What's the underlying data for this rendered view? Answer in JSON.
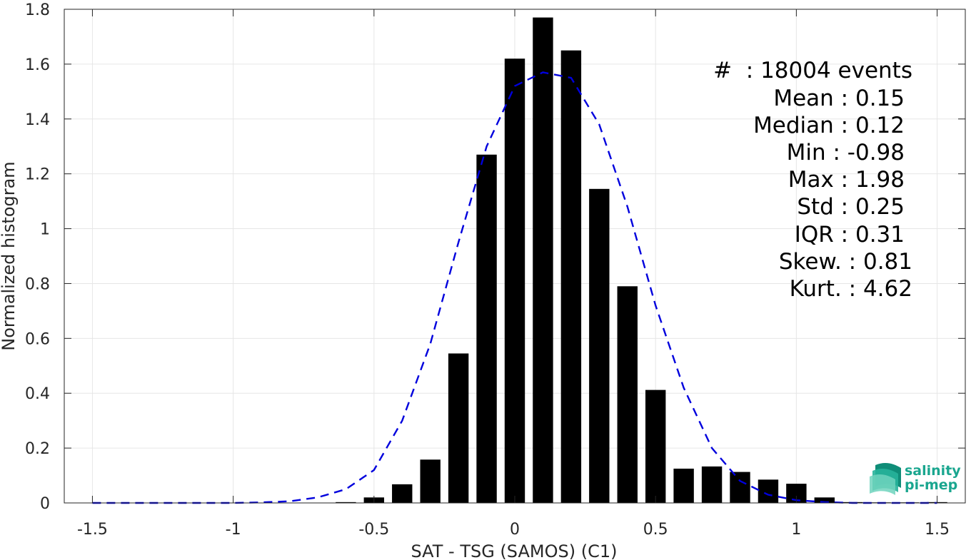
{
  "chart_data": {
    "type": "bar",
    "xlabel": "SAT - TSG (SAMOS) (C1)",
    "ylabel": "Normalized histogram",
    "xlim": [
      -1.6,
      1.6
    ],
    "ylim": [
      0,
      1.8
    ],
    "xticks": [
      -1.5,
      -1,
      -0.5,
      0,
      0.5,
      1,
      1.5
    ],
    "xtick_labels": [
      "-1.5",
      "-1",
      "-0.5",
      "0",
      "0.5",
      "1",
      "1.5"
    ],
    "yticks": [
      0,
      0.2,
      0.4,
      0.6,
      0.8,
      1,
      1.2,
      1.4,
      1.6,
      1.8
    ],
    "ytick_labels": [
      "0",
      "0.2",
      "0.4",
      "0.6",
      "0.8",
      "1",
      "1.2",
      "1.4",
      "1.6",
      "1.8"
    ],
    "grid": true,
    "bar_color": "#000000",
    "fit_color": "#0000dd",
    "bins": {
      "x": [
        -0.6,
        -0.5,
        -0.4,
        -0.3,
        -0.2,
        -0.1,
        0.0,
        0.1,
        0.2,
        0.3,
        0.4,
        0.5,
        0.6,
        0.7,
        0.8,
        0.9,
        1.0,
        1.1,
        1.2,
        1.3,
        1.4,
        1.5
      ],
      "values": [
        0.003,
        0.02,
        0.068,
        0.158,
        0.545,
        1.27,
        1.62,
        1.77,
        1.65,
        1.145,
        0.79,
        0.412,
        0.125,
        0.133,
        0.113,
        0.085,
        0.07,
        0.02,
        0.003,
        0.002,
        0.002,
        0.003
      ]
    },
    "fit": {
      "x": [
        -1.5,
        -1.4,
        -1.3,
        -1.2,
        -1.1,
        -1.0,
        -0.9,
        -0.8,
        -0.7,
        -0.6,
        -0.5,
        -0.4,
        -0.3,
        -0.2,
        -0.1,
        0.0,
        0.1,
        0.2,
        0.3,
        0.4,
        0.5,
        0.6,
        0.7,
        0.8,
        0.9,
        1.0,
        1.1,
        1.2,
        1.3,
        1.4,
        1.5
      ],
      "y": [
        0.0,
        0.0,
        0.0,
        0.0,
        0.0,
        0.0,
        0.002,
        0.006,
        0.02,
        0.05,
        0.12,
        0.3,
        0.58,
        0.95,
        1.3,
        1.52,
        1.57,
        1.55,
        1.38,
        1.08,
        0.72,
        0.42,
        0.2,
        0.08,
        0.03,
        0.01,
        0.003,
        0.0,
        0.0,
        0.0,
        0.0
      ]
    }
  },
  "stats": [
    "#  : 18004 events",
    "Mean : 0.15",
    "Median : 0.12",
    "Min : -0.98",
    "Max : 1.98",
    "Std : 0.25",
    "IQR : 0.31",
    "Skew. : 0.81",
    "Kurt. : 4.62"
  ],
  "logo": {
    "line1": "salinity",
    "line2": "pi-mep",
    "color": "#1aa68f"
  }
}
